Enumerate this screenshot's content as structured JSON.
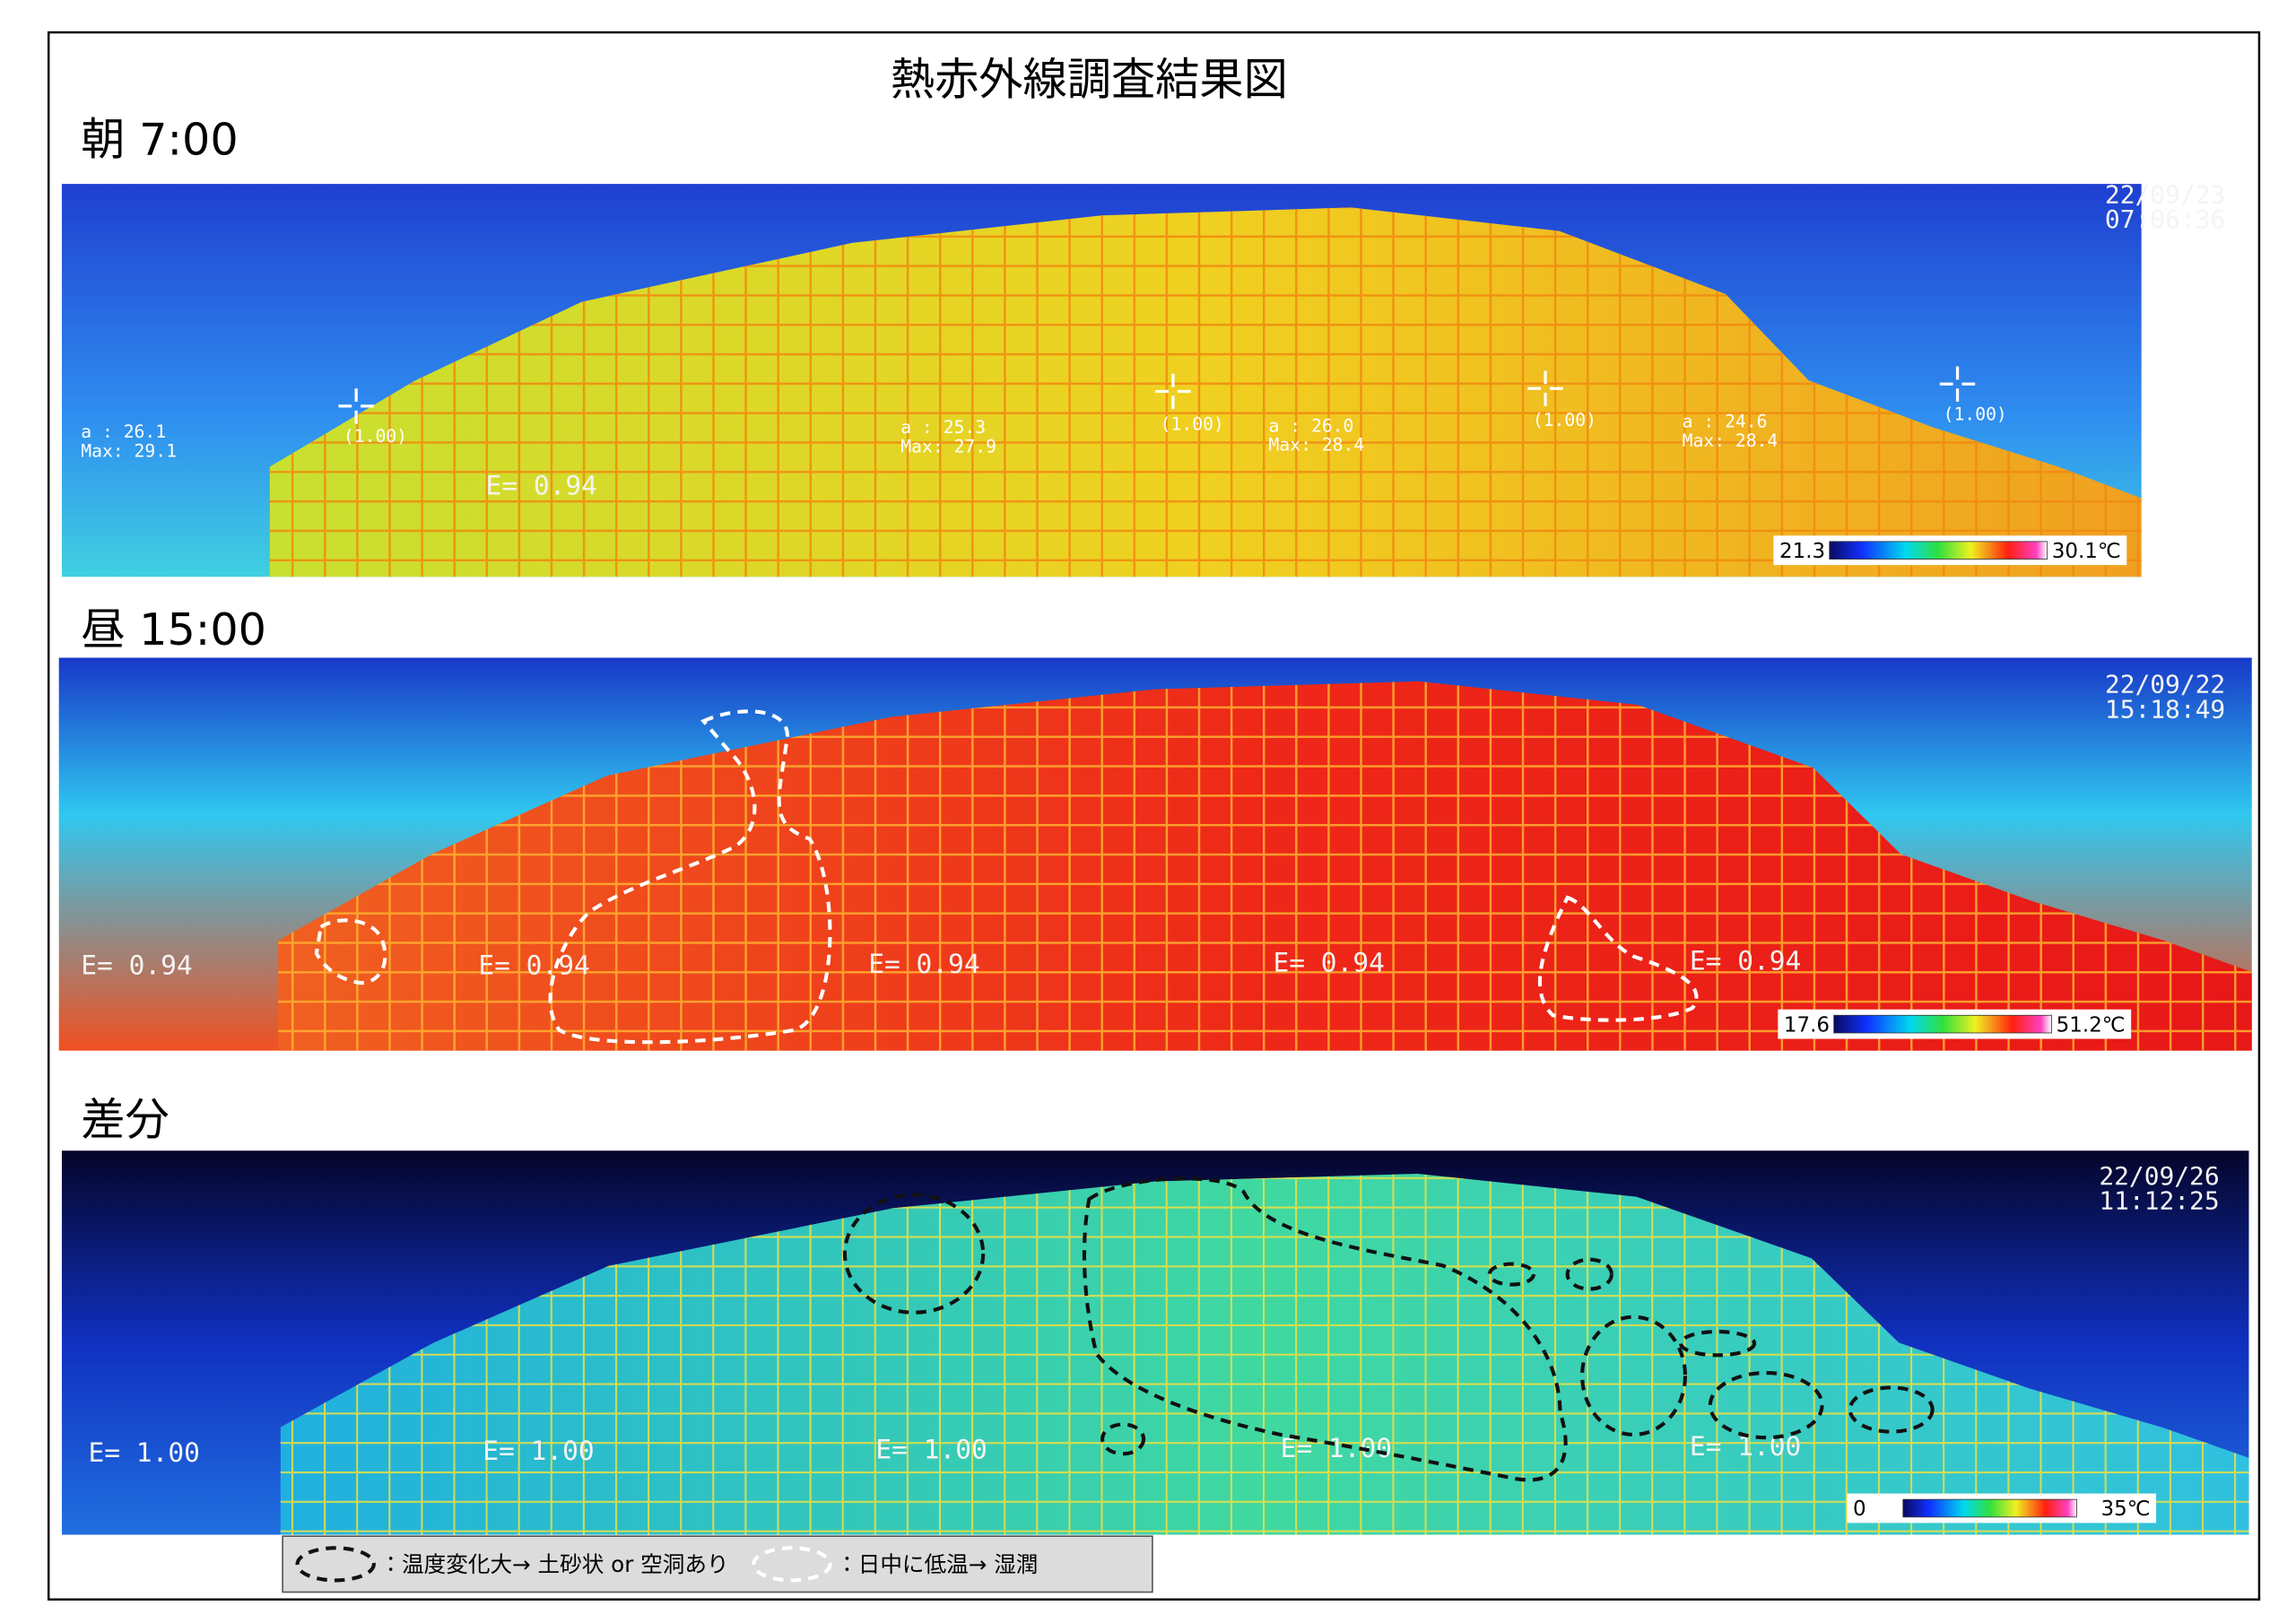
{
  "title": "熱赤外線調査結果図",
  "panels": [
    {
      "label": "朝 7:00",
      "timestamp": [
        "22/09/23",
        "07:06:36"
      ],
      "emissivity": [
        "E= 0.94"
      ],
      "cursors": [
        "(1.00)",
        "(1.00)",
        "(1.00)",
        "(1.00)"
      ],
      "readouts": [
        {
          "a": "a : 26.1",
          "max": "Max: 29.1"
        },
        {
          "a": "a : 25.3",
          "max": "Max: 27.9"
        },
        {
          "a": "a : 26.0",
          "max": "Max: 28.4"
        },
        {
          "a": "a : 24.6",
          "max": "Max: 28.4"
        }
      ],
      "scale": {
        "min": "21.3",
        "max": "30.1℃"
      }
    },
    {
      "label": "昼 15:00",
      "timestamp": [
        "22/09/22",
        "15:18:49"
      ],
      "emissivity": [
        "E= 0.94",
        "E= 0.94",
        "E= 0.94",
        "E= 0.94",
        "E= 0.94"
      ],
      "scale": {
        "min": "17.6",
        "max": "51.2℃"
      }
    },
    {
      "label": "差分",
      "timestamp": [
        "22/09/26",
        "11:12:25"
      ],
      "emissivity": [
        "E= 1.00",
        "E= 1.00",
        "E= 1.00",
        "E= 1.00",
        "E= 1.00"
      ],
      "scale": {
        "min": "0",
        "max": "35℃"
      }
    }
  ],
  "legend": [
    {
      "text": "：温度変化大→ 土砂状 or 空洞あり"
    },
    {
      "text": "：日中に低温→ 湿潤"
    }
  ]
}
